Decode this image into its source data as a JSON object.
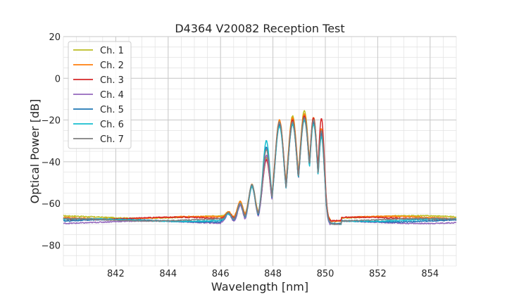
{
  "chart_data": {
    "type": "line",
    "title": "D4364 V20082 Reception Test",
    "xlabel": "Wavelength [nm]",
    "ylabel": "Optical Power [dB]",
    "xlim": [
      840,
      855
    ],
    "ylim": [
      -90,
      20
    ],
    "xticks": [
      842,
      844,
      846,
      848,
      850,
      852,
      854
    ],
    "yticks": [
      20,
      0,
      -20,
      -40,
      -60,
      -80
    ],
    "grid": true,
    "minor_grid": true,
    "legend": "top-left",
    "series": [
      {
        "name": "Ch. 1",
        "color": "#bcbd22",
        "baseline": -66.5,
        "peaks": [
          -64,
          -59,
          -51,
          -38,
          -21,
          -18,
          -15.5,
          -19,
          -25
        ]
      },
      {
        "name": "Ch. 2",
        "color": "#ff7f0e",
        "baseline": -66.8,
        "peaks": [
          -64,
          -59,
          -51,
          -39,
          -20,
          -19,
          -17,
          -18.5,
          -24
        ]
      },
      {
        "name": "Ch. 3",
        "color": "#d62728",
        "baseline": -67.2,
        "peaks": [
          -64.5,
          -60,
          -52,
          -39,
          -21,
          -20,
          -18,
          -19,
          -19
        ]
      },
      {
        "name": "Ch. 4",
        "color": "#9467bd",
        "baseline": -69.0,
        "peaks": [
          -65,
          -61,
          -52,
          -37,
          -22,
          -21,
          -19,
          -20,
          -27
        ]
      },
      {
        "name": "Ch. 5",
        "color": "#1f77b4",
        "baseline": -68.3,
        "peaks": [
          -64.5,
          -60,
          -51,
          -33,
          -22,
          -22,
          -19,
          -21,
          -26
        ]
      },
      {
        "name": "Ch. 6",
        "color": "#17becf",
        "baseline": -68.0,
        "peaks": [
          -65,
          -60,
          -52,
          -30,
          -23,
          -22,
          -20,
          -22,
          -28
        ]
      },
      {
        "name": "Ch. 7",
        "color": "#7f7f7f",
        "baseline": -67.8,
        "peaks": [
          -64.5,
          -60,
          -51,
          -34,
          -21,
          -21,
          -19,
          -20,
          -25
        ]
      }
    ],
    "peak_wavelengths": [
      846.3,
      846.75,
      847.2,
      847.75,
      848.25,
      848.75,
      849.2,
      849.55,
      849.85
    ]
  }
}
